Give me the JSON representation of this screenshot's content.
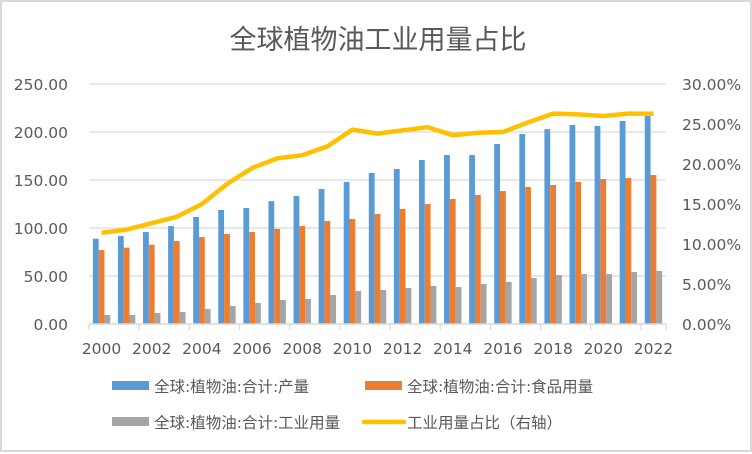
{
  "chart_data": {
    "type": "bar",
    "combo": "bar+line",
    "title": "全球植物油工业用量占比",
    "xlabel": "",
    "ylabel": "",
    "y2label": "",
    "categories": [
      "2000",
      "2001",
      "2002",
      "2003",
      "2004",
      "2005",
      "2006",
      "2007",
      "2008",
      "2009",
      "2010",
      "2011",
      "2012",
      "2013",
      "2014",
      "2015",
      "2016",
      "2017",
      "2018",
      "2019",
      "2020",
      "2021",
      "2022"
    ],
    "x_tick_labels": [
      "2000",
      "2002",
      "2004",
      "2006",
      "2008",
      "2010",
      "2012",
      "2014",
      "2016",
      "2018",
      "2020",
      "2022"
    ],
    "ylim": [
      0,
      250
    ],
    "y_ticks": [
      0,
      50,
      100,
      150,
      200,
      250
    ],
    "y_tick_labels": [
      "0.00",
      "50.00",
      "100.00",
      "150.00",
      "200.00",
      "250.00"
    ],
    "y2lim": [
      0,
      0.3
    ],
    "y2_ticks": [
      0,
      0.05,
      0.1,
      0.15,
      0.2,
      0.25,
      0.3
    ],
    "y2_tick_labels": [
      "0.00%",
      "5.00%",
      "10.00%",
      "15.00%",
      "20.00%",
      "25.00%",
      "30.00%"
    ],
    "grid": true,
    "legend_position": "bottom",
    "series": [
      {
        "name": "全球:植物油:合计:产量",
        "type": "bar",
        "axis": "left",
        "color": "#5b9bd5",
        "values": [
          88.9,
          91.7,
          95.8,
          102.0,
          111.5,
          118.8,
          120.8,
          128.0,
          133.3,
          140.6,
          147.9,
          157.3,
          161.5,
          170.8,
          176.0,
          176.0,
          187.5,
          197.9,
          203.0,
          207.3,
          206.3,
          211.5,
          216.7
        ]
      },
      {
        "name": "全球:植物油:合计:食品用量",
        "type": "bar",
        "axis": "left",
        "color": "#ed7d31",
        "values": [
          77.0,
          79.5,
          82.6,
          86.5,
          90.6,
          93.8,
          95.8,
          99.0,
          102.0,
          107.3,
          109.4,
          114.6,
          119.8,
          125.0,
          130.2,
          134.4,
          138.5,
          142.7,
          144.8,
          147.9,
          151.0,
          152.0,
          155.2
        ]
      },
      {
        "name": "全球:植物油:合计:工业用量",
        "type": "bar",
        "axis": "left",
        "color": "#a5a5a5",
        "values": [
          9.4,
          9.4,
          11.5,
          12.5,
          15.6,
          18.8,
          21.9,
          25.0,
          26.0,
          30.2,
          34.4,
          35.4,
          37.5,
          39.6,
          38.5,
          41.7,
          43.8,
          47.9,
          51.0,
          52.0,
          52.0,
          54.2,
          55.2
        ]
      },
      {
        "name": "工业用量占比（右轴）",
        "type": "line",
        "axis": "right",
        "color": "#ffc000",
        "values": [
          0.114,
          0.118,
          0.126,
          0.134,
          0.15,
          0.175,
          0.195,
          0.207,
          0.211,
          0.222,
          0.243,
          0.238,
          0.242,
          0.246,
          0.236,
          0.239,
          0.24,
          0.252,
          0.263,
          0.262,
          0.26,
          0.263,
          0.263
        ]
      }
    ]
  },
  "colors": {
    "text": "#595959",
    "gridline": "#d9d9d9",
    "axis": "#d9d9d9",
    "border": "#d9d9d9"
  }
}
